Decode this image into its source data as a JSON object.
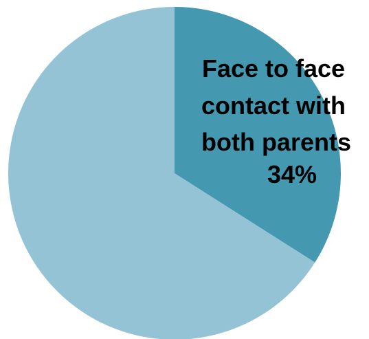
{
  "chart_data": {
    "type": "pie",
    "title": "",
    "slices": [
      {
        "label": "Face to face contact with both parents",
        "value": 34,
        "value_label": "34%",
        "color": "#4498b0"
      },
      {
        "label": "",
        "value": 66,
        "value_label": "",
        "color": "#94c3d5"
      }
    ],
    "label_lines": [
      "Face to face",
      "contact with",
      "both parents",
      "34%"
    ],
    "start_angle": "12 o'clock",
    "direction": "clockwise"
  }
}
